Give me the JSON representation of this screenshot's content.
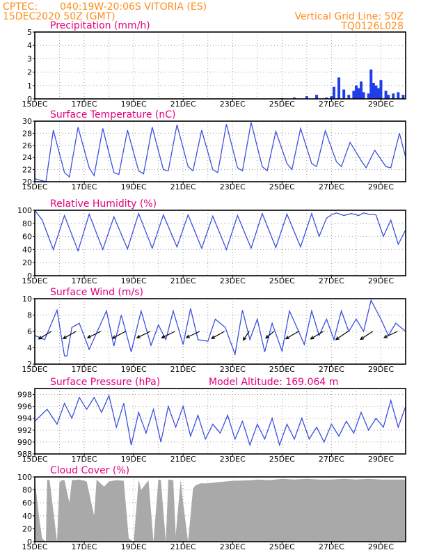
{
  "header": {
    "source": "CPTEC:",
    "location": "040:19W-20:06S  VITORIA (ES)",
    "run": "15DEC2020 50Z (GMT)",
    "grid_note": "Vertical Grid Line: 50Z",
    "code": "TQ0126L028"
  },
  "x_ticks": [
    "15DEC",
    "17DEC",
    "19DEC",
    "21DEC",
    "23DEC",
    "25DEC",
    "27DEC",
    "29DEC"
  ],
  "colors": {
    "line": "#3a4fe0",
    "bars": "#1f3ee8",
    "cloud": "#a9a9a9",
    "title": "#e6007e",
    "header": "#ff8c1a",
    "arrows": "#000000"
  },
  "chart_data": [
    {
      "type": "bar",
      "title": "Precipitation (mm/h)",
      "ylim": [
        0,
        5
      ],
      "yticks": [
        "0",
        "1",
        "2",
        "3",
        "4",
        "5"
      ],
      "x": [
        10.0,
        10.5,
        11.0,
        11.4,
        11.8,
        12.0,
        12.1,
        12.3,
        12.5,
        12.7,
        12.9,
        13.0,
        13.1,
        13.2,
        13.3,
        13.5,
        13.6,
        13.7,
        13.8,
        13.9,
        14.0,
        14.2,
        14.3,
        14.5,
        14.7,
        14.9
      ],
      "values": [
        0.05,
        0.1,
        0.2,
        0.3,
        0.1,
        0.2,
        0.9,
        1.6,
        0.7,
        0.3,
        0.6,
        1.0,
        0.8,
        1.3,
        0.5,
        0.4,
        2.2,
        1.2,
        1.0,
        0.8,
        1.4,
        0.6,
        0.3,
        0.4,
        0.5,
        0.3
      ]
    },
    {
      "type": "line",
      "title": "Surface Temperature (nC)",
      "ylim": [
        20,
        30
      ],
      "yticks": [
        "20",
        "22",
        "24",
        "26",
        "28",
        "30"
      ],
      "x": [
        0,
        0.45,
        0.75,
        1.2,
        1.4,
        1.75,
        2.2,
        2.4,
        2.75,
        3.2,
        3.4,
        3.75,
        4.2,
        4.4,
        4.75,
        5.2,
        5.4,
        5.75,
        6.2,
        6.4,
        6.75,
        7.2,
        7.4,
        7.75,
        8.2,
        8.4,
        8.75,
        9.2,
        9.4,
        9.75,
        10.2,
        10.4,
        10.75,
        11.2,
        11.4,
        11.75,
        12.2,
        12.4,
        12.75,
        13.2,
        13.4,
        13.75,
        14.2,
        14.4,
        14.75,
        15
      ],
      "values": [
        20.5,
        20,
        28.5,
        21.5,
        20.8,
        29,
        22.3,
        21,
        28.8,
        21.5,
        21.2,
        28.5,
        21.8,
        21.3,
        29,
        22,
        21.8,
        29.4,
        22.5,
        21.8,
        28.5,
        22,
        21.5,
        29.5,
        22.3,
        21.8,
        29.8,
        22.5,
        21.8,
        28.3,
        23,
        22,
        28.8,
        23,
        22.5,
        28.4,
        23.3,
        22.5,
        26.5,
        23.5,
        22.3,
        25.2,
        22.5,
        22.3,
        28,
        24
      ]
    },
    {
      "type": "line",
      "title": "Relative Humidity (%)",
      "ylim": [
        0,
        100
      ],
      "yticks": [
        "0",
        "20",
        "40",
        "60",
        "80",
        "100"
      ],
      "x": [
        0,
        0.3,
        0.75,
        1.2,
        1.75,
        2.2,
        2.75,
        3.2,
        3.75,
        4.2,
        4.75,
        5.2,
        5.75,
        6.2,
        6.75,
        7.2,
        7.75,
        8.2,
        8.75,
        9.2,
        9.75,
        10.2,
        10.75,
        11.2,
        11.5,
        11.8,
        12.0,
        12.2,
        12.5,
        12.8,
        13.1,
        13.3,
        13.5,
        13.8,
        14.1,
        14.4,
        14.7,
        15
      ],
      "values": [
        100,
        85,
        40,
        92,
        38,
        94,
        40,
        90,
        41,
        95,
        42,
        93,
        44,
        93,
        42,
        91,
        40,
        92,
        42,
        95,
        43,
        94,
        44,
        95,
        60,
        88,
        93,
        96,
        92,
        95,
        92,
        96,
        94,
        93,
        60,
        85,
        48,
        70
      ]
    },
    {
      "type": "line",
      "title": "Surface Wind (m/s)",
      "ylim": [
        2,
        10
      ],
      "yticks": [
        "2",
        "4",
        "6",
        "8",
        "10"
      ],
      "x": [
        0,
        0.4,
        0.9,
        1.2,
        1.3,
        1.5,
        1.8,
        2.2,
        2.9,
        3.2,
        3.5,
        3.9,
        4.3,
        4.7,
        5.0,
        5.3,
        5.6,
        6.0,
        6.3,
        6.6,
        7.0,
        7.3,
        7.7,
        8.1,
        8.4,
        8.7,
        9.0,
        9.3,
        9.6,
        10.0,
        10.3,
        10.6,
        10.9,
        11.2,
        11.5,
        11.8,
        12.1,
        12.4,
        12.7,
        13.0,
        13.3,
        13.6,
        14.0,
        14.3,
        14.6,
        15
      ],
      "values": [
        5.5,
        5,
        8.6,
        3,
        3,
        6.5,
        7,
        3.8,
        8.5,
        4.2,
        8,
        3.5,
        8.5,
        4.3,
        6.8,
        5,
        8.5,
        4.4,
        8.8,
        5,
        4.8,
        7.5,
        6.5,
        3.2,
        8.6,
        5,
        7.5,
        3.5,
        7,
        3.6,
        8.5,
        6.5,
        4.4,
        8.5,
        5.5,
        7.5,
        5,
        8.5,
        6,
        7.5,
        6,
        9.8,
        7.5,
        5.5,
        7,
        6
      ]
    },
    {
      "type": "line",
      "title": "Surface Pressure (hPa)",
      "annotation": "Model Altitude: 169.064 m",
      "ylim": [
        988,
        999
      ],
      "yticks": [
        "988",
        "990",
        "992",
        "994",
        "996",
        "998"
      ],
      "x": [
        0,
        0.5,
        0.9,
        1.2,
        1.5,
        1.8,
        2.1,
        2.4,
        2.7,
        3.0,
        3.3,
        3.6,
        3.9,
        4.2,
        4.5,
        4.8,
        5.1,
        5.4,
        5.7,
        6.0,
        6.3,
        6.6,
        6.9,
        7.2,
        7.5,
        7.8,
        8.1,
        8.4,
        8.7,
        9.0,
        9.3,
        9.6,
        9.9,
        10.2,
        10.5,
        10.8,
        11.1,
        11.4,
        11.7,
        12.0,
        12.3,
        12.6,
        12.9,
        13.2,
        13.5,
        13.8,
        14.1,
        14.4,
        14.7,
        15
      ],
      "values": [
        993.5,
        995.5,
        993,
        996.5,
        994,
        997.5,
        995.5,
        997.5,
        995,
        997.8,
        992.5,
        996.5,
        989.5,
        995,
        991.5,
        995.5,
        990,
        996,
        992.5,
        996,
        991,
        994.5,
        990.5,
        993,
        991.5,
        994.5,
        990.5,
        993.5,
        989.5,
        993,
        990.5,
        994,
        989.5,
        993,
        990.5,
        994,
        990.5,
        992.5,
        990,
        993,
        991,
        993.5,
        991.5,
        995,
        992,
        994,
        992.5,
        997,
        992.5,
        996
      ]
    },
    {
      "type": "area",
      "title": "Cloud Cover (%)",
      "ylim": [
        0,
        100
      ],
      "yticks": [
        "0",
        "20",
        "40",
        "60",
        "80",
        "100"
      ],
      "x": [
        0,
        0.2,
        0.3,
        0.45,
        0.5,
        0.6,
        0.9,
        1.0,
        1.1,
        1.2,
        1.4,
        1.5,
        1.8,
        2.1,
        2.4,
        2.5,
        2.8,
        3.0,
        3.3,
        3.6,
        3.8,
        4.0,
        4.2,
        4.3,
        4.6,
        4.8,
        5.0,
        5.1,
        5.3,
        5.4,
        5.6,
        5.7,
        5.9,
        6.0,
        6.2,
        6.4,
        6.5,
        6.7,
        7.0,
        7.4,
        8.0,
        8.8,
        9.0,
        9.5,
        10.0,
        10.5,
        11.0,
        11.5,
        12.0,
        12.5,
        13.0,
        13.5,
        14.0,
        14.5,
        15
      ],
      "values": [
        95,
        30,
        5,
        0,
        96,
        95,
        0,
        92,
        95,
        95,
        60,
        95,
        96,
        93,
        40,
        96,
        85,
        93,
        95,
        94,
        5,
        0,
        96,
        80,
        95,
        0,
        96,
        95,
        0,
        96,
        95,
        10,
        96,
        60,
        0,
        82,
        87,
        90,
        90,
        92,
        94,
        95,
        96,
        95,
        97,
        96,
        97,
        96,
        96,
        97,
        96,
        97,
        96,
        96,
        96
      ]
    }
  ],
  "wind_arrows": [
    {
      "x": 0.5,
      "angle": 211,
      "len": 21
    },
    {
      "x": 1.5,
      "angle": 209,
      "len": 21
    },
    {
      "x": 2.5,
      "angle": 206,
      "len": 21
    },
    {
      "x": 3.5,
      "angle": 208,
      "len": 21
    },
    {
      "x": 4.5,
      "angle": 206,
      "len": 21
    },
    {
      "x": 5.5,
      "angle": 206,
      "len": 21
    },
    {
      "x": 6.5,
      "angle": 205,
      "len": 21
    },
    {
      "x": 7.5,
      "angle": 209,
      "len": 21
    },
    {
      "x": 8.5,
      "angle": 236,
      "len": 15
    },
    {
      "x": 9.5,
      "angle": 220,
      "len": 15
    },
    {
      "x": 10.5,
      "angle": 210,
      "len": 21
    },
    {
      "x": 11.5,
      "angle": 211,
      "len": 21
    },
    {
      "x": 12.5,
      "angle": 214,
      "len": 21
    },
    {
      "x": 13.5,
      "angle": 213,
      "len": 21
    },
    {
      "x": 14.5,
      "angle": 205,
      "len": 21
    }
  ]
}
